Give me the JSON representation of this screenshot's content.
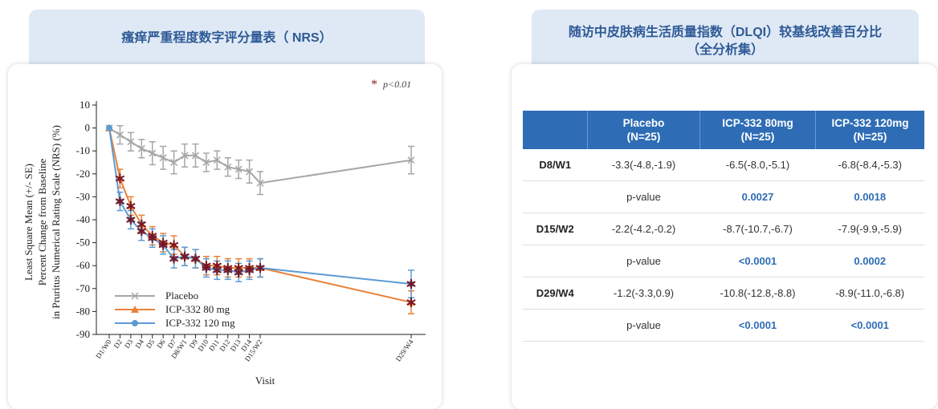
{
  "left_panel": {
    "title": "瘙痒严重程度数字评分量表（ NRS）"
  },
  "right_panel": {
    "title_line1": "随访中皮肤病生活质量指数（DLQI）较基线改善百分比",
    "title_line2": "（全分析集）"
  },
  "dlqi_table": {
    "headers": [
      {
        "line1": "",
        "line2": ""
      },
      {
        "line1": "Placebo",
        "line2": "(N=25)"
      },
      {
        "line1": "ICP-332 80mg",
        "line2": "(N=25)"
      },
      {
        "line1": "ICP-332 120mg",
        "line2": "(N=25)"
      }
    ],
    "rows": [
      {
        "visit": "D8/W1",
        "placebo": "-3.3(-4.8,-1.9)",
        "dose80": "-6.5(-8.0,-5.1)",
        "dose120": "-6.8(-8.4,-5.3)"
      },
      {
        "visit": "",
        "placebo": "p-value",
        "dose80": "0.0027",
        "dose120": "0.0018"
      },
      {
        "visit": "D15/W2",
        "placebo": "-2.2(-4.2,-0.2)",
        "dose80": "-8.7(-10.7,-6.7)",
        "dose120": "-7.9(-9.9,-5.9)"
      },
      {
        "visit": "",
        "placebo": "p-value",
        "dose80": "<0.0001",
        "dose120": "0.0002"
      },
      {
        "visit": "D29/W4",
        "placebo": "-1.2(-3.3,0.9)",
        "dose80": "-10.8(-12.8,-8.8)",
        "dose120": "-8.9(-11.0,-6.8)"
      },
      {
        "visit": "",
        "placebo": "p-value",
        "dose80": "<0.0001",
        "dose120": "<0.0001"
      }
    ]
  },
  "chart_data": {
    "type": "line",
    "annotation": "p<0.01",
    "annotation_marker": "*",
    "ylabel_lines": [
      "Least Square Mean (+/- SE)",
      "Percent Change from Baseline",
      "in Pruritus Numerical Rating Scale (NRS) (%)"
    ],
    "xlabel": "Visit",
    "ylim": [
      -90,
      10
    ],
    "yticks": [
      10,
      0,
      -10,
      -20,
      -30,
      -40,
      -50,
      -60,
      -70,
      -80,
      -90
    ],
    "categories": [
      "D1/W0",
      "D2",
      "D3",
      "D4",
      "D5",
      "D6",
      "D7",
      "D8/W1",
      "D9",
      "D10",
      "D11",
      "D12",
      "D13",
      "D14",
      "D15/W2",
      "D29/W4"
    ],
    "legend_position": "bottom-left",
    "series": [
      {
        "name": "Placebo",
        "color": "#a6a6a6",
        "marker": "x",
        "values": [
          0,
          -3,
          -6,
          -9,
          -11,
          -13,
          -15,
          -12,
          -12,
          -15,
          -14,
          -17,
          -18,
          -19,
          -24,
          -14
        ],
        "se": [
          0,
          4,
          4,
          4,
          5,
          5,
          5,
          5,
          5,
          4,
          4,
          4,
          4,
          5,
          5,
          6
        ]
      },
      {
        "name": "ICP-332 80 mg",
        "color": "#e8823a",
        "marker": "triangle",
        "values": [
          0,
          -22,
          -34,
          -42,
          -47,
          -50,
          -51,
          -56,
          -57,
          -60,
          -60,
          -61,
          -61,
          -61,
          -61,
          -76
        ],
        "se": [
          0,
          4,
          4,
          4,
          4,
          4,
          4,
          4,
          4,
          4,
          4,
          4,
          4,
          4,
          4,
          5
        ],
        "significant": [
          false,
          true,
          true,
          true,
          true,
          true,
          true,
          true,
          true,
          true,
          true,
          true,
          true,
          true,
          true,
          true
        ]
      },
      {
        "name": "ICP-332 120 mg",
        "color": "#5b9bd5",
        "marker": "circle",
        "values": [
          0,
          -32,
          -40,
          -45,
          -48,
          -51,
          -57,
          -56,
          -57,
          -61,
          -62,
          -62,
          -63,
          -62,
          -61,
          -68
        ],
        "se": [
          0,
          4,
          4,
          4,
          4,
          4,
          4,
          4,
          4,
          4,
          4,
          4,
          4,
          4,
          4,
          6
        ],
        "significant": [
          false,
          true,
          true,
          true,
          true,
          true,
          true,
          true,
          true,
          true,
          true,
          true,
          true,
          true,
          true,
          true
        ]
      }
    ]
  }
}
